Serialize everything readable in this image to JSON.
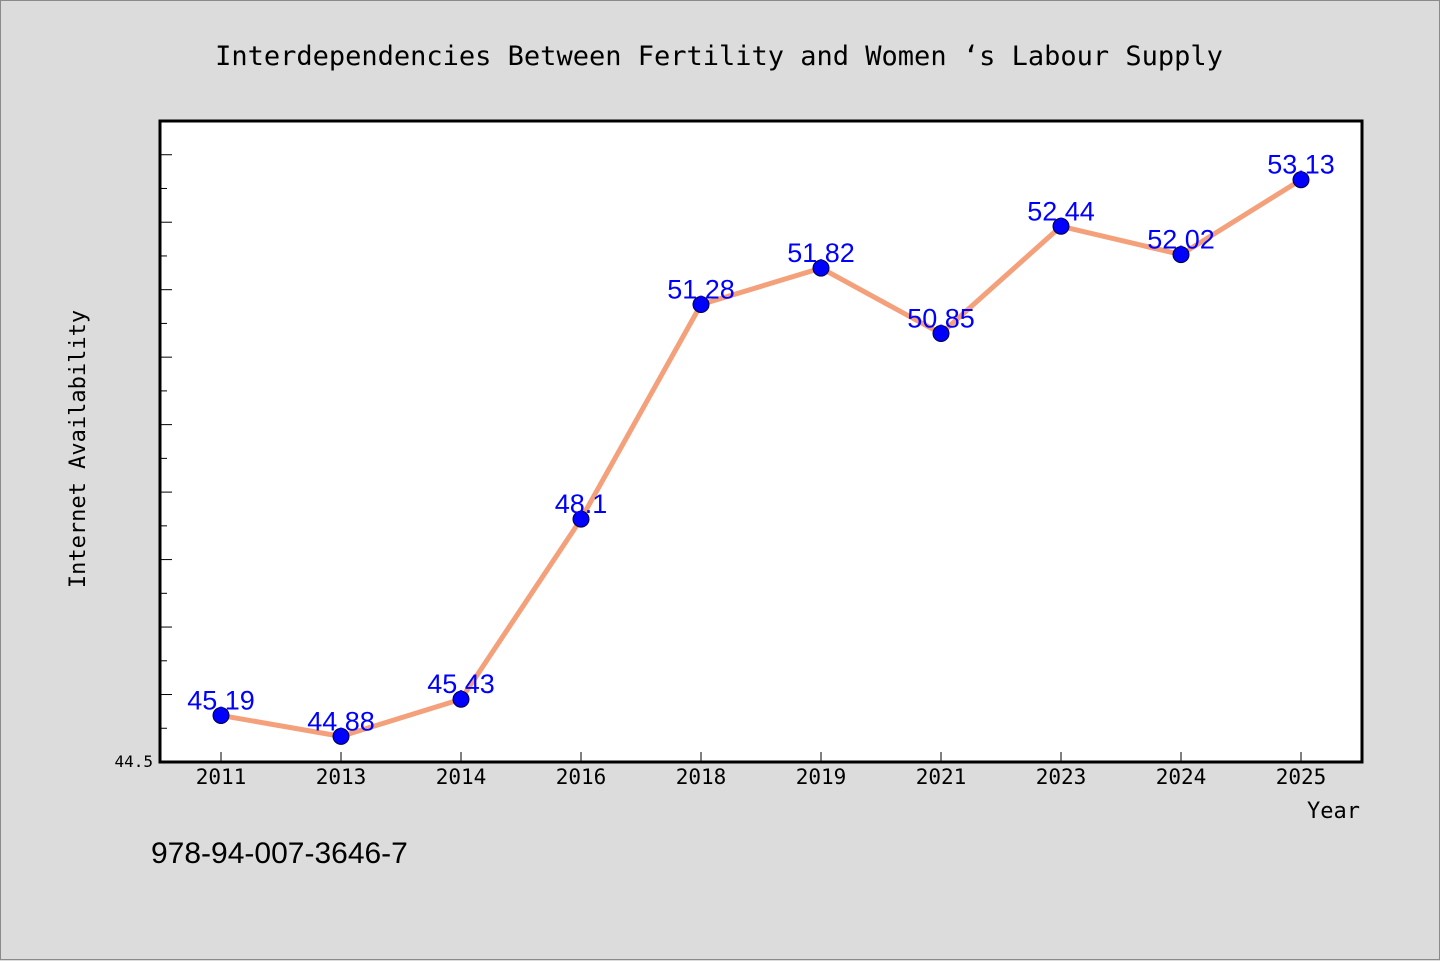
{
  "chart_data": {
    "type": "line",
    "title": "Interdependencies Between Fertility and Women ‘s Labour Supply",
    "xlabel": "Year",
    "ylabel": "Internet Availability",
    "categories": [
      "2011",
      "2013",
      "2014",
      "2016",
      "2018",
      "2019",
      "2021",
      "2023",
      "2024",
      "2025"
    ],
    "series": [
      {
        "values": [
          45.19,
          44.88,
          45.43,
          48.1,
          51.28,
          51.82,
          50.85,
          52.44,
          52.02,
          53.13
        ],
        "data_labels": [
          "45.19",
          "44.88",
          "45.43",
          "48.1",
          "51.28",
          "51.82",
          "50.85",
          "52.44",
          "52.02",
          "53.13"
        ]
      }
    ],
    "yticks": [
      "44.5"
    ],
    "ylim": [
      44.5,
      54.0
    ],
    "grid": false,
    "legend": "none",
    "colors": {
      "line": "#f4a07a",
      "marker": "#0000ff",
      "data_label": "#0000ff",
      "plot_background": "#ffffff",
      "figure_background": "#dcdcdc"
    }
  },
  "footer": {
    "isbn": "978-94-007-3646-7"
  }
}
